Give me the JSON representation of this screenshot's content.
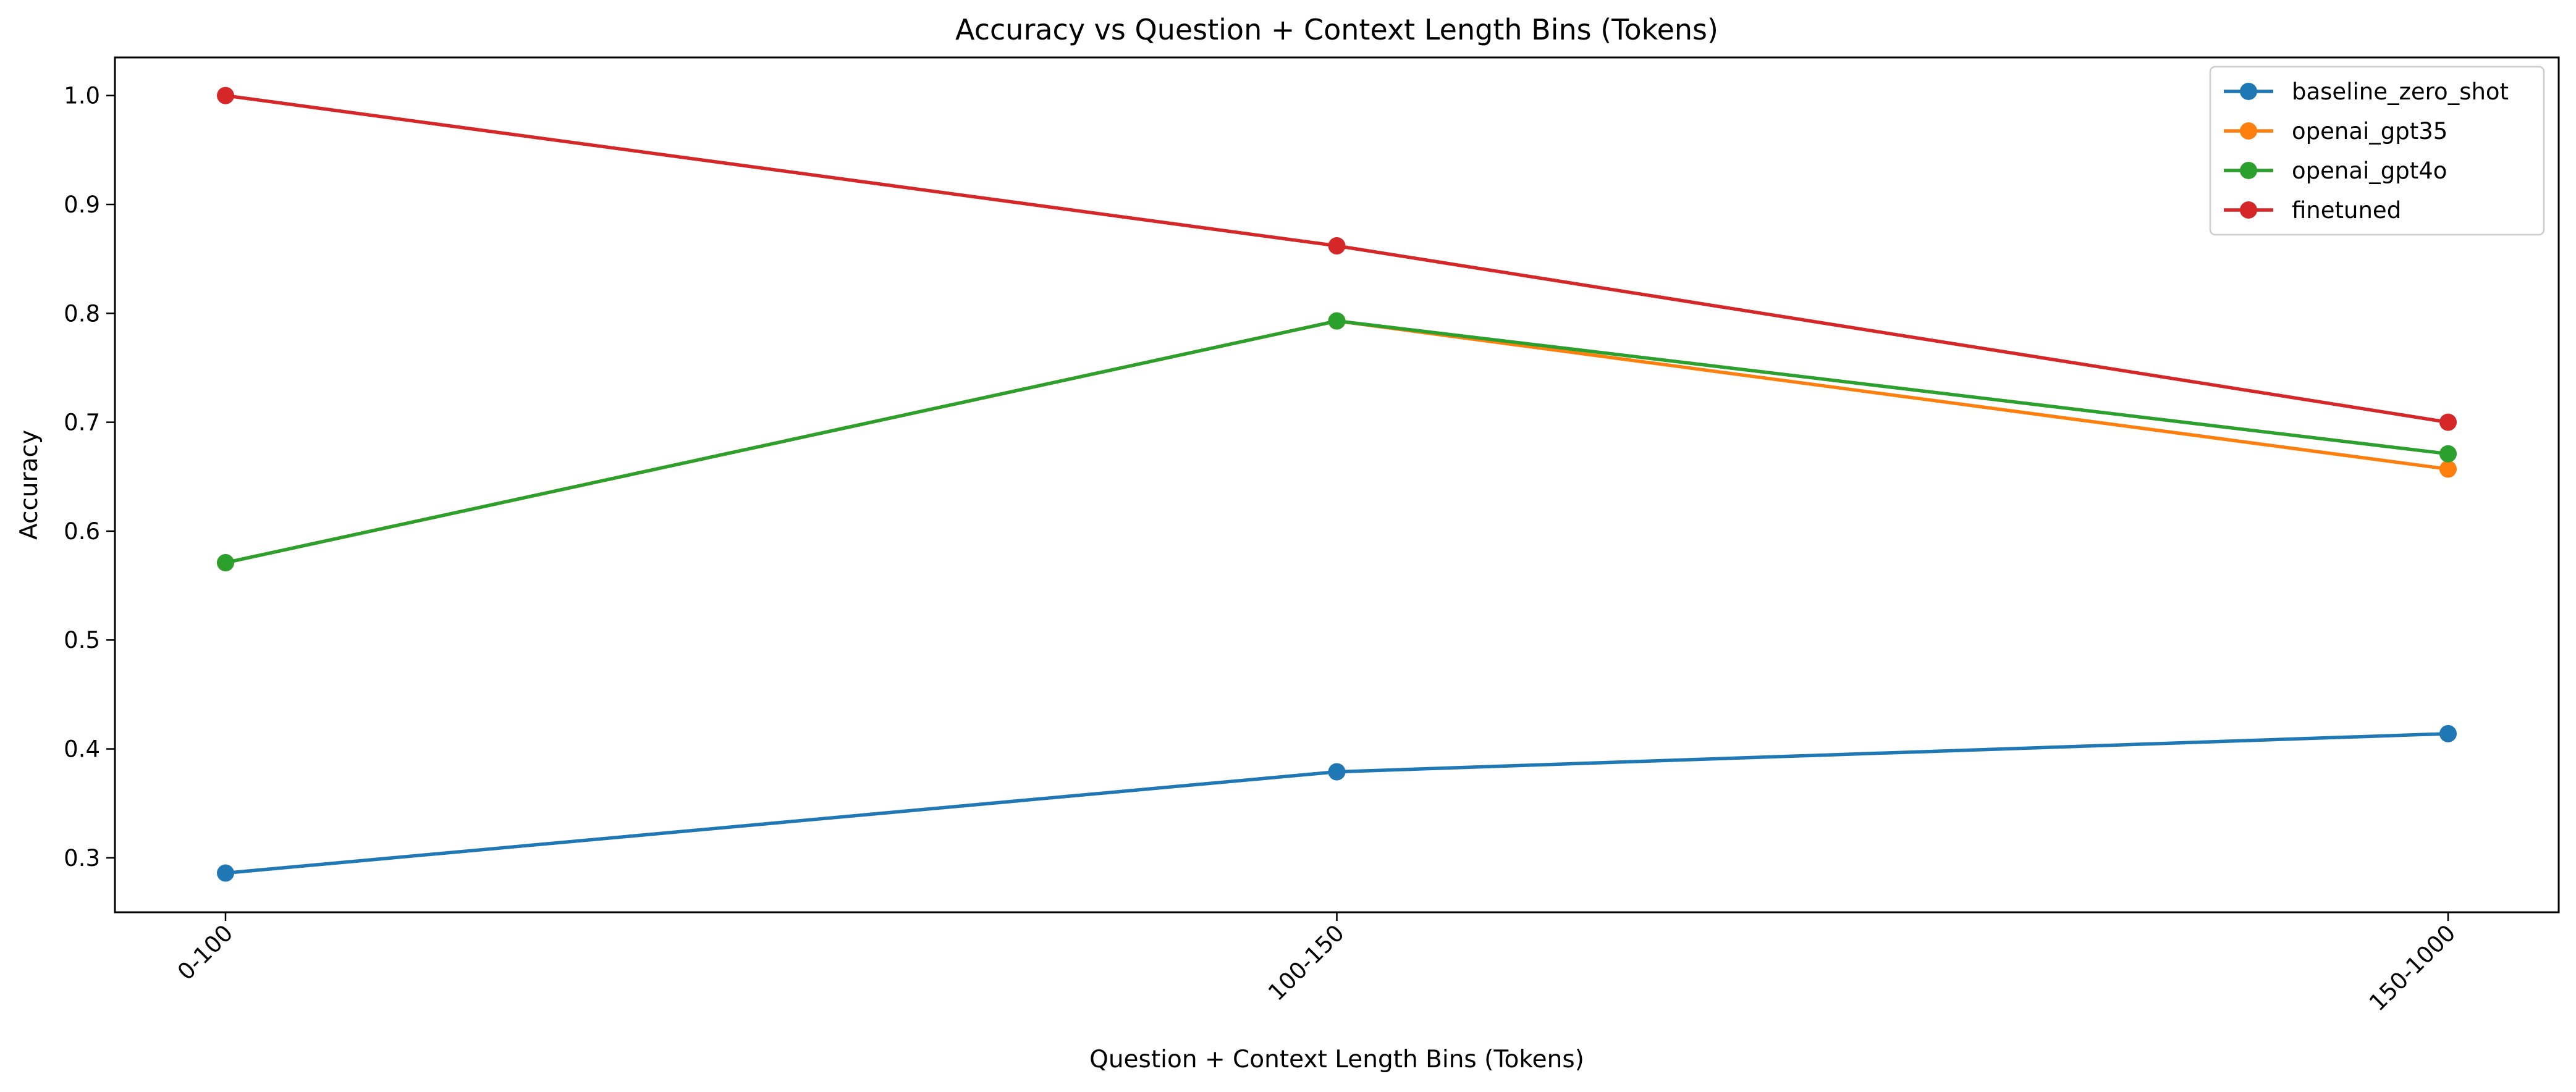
{
  "chart_data": {
    "type": "line",
    "title": "Accuracy vs Question + Context Length Bins (Tokens)",
    "xlabel": "Question + Context Length Bins (Tokens)",
    "ylabel": "Accuracy",
    "categories": [
      "0-100",
      "100-150",
      "150-1000"
    ],
    "ylim": [
      0.25,
      1.035
    ],
    "yticks": [
      "0.3",
      "0.4",
      "0.5",
      "0.6",
      "0.7",
      "0.8",
      "0.9",
      "1.0"
    ],
    "xtick_rotation": 45,
    "grid": false,
    "legend_position": "top-right",
    "series": [
      {
        "name": "baseline_zero_shot",
        "color": "#1f77b4",
        "values": [
          0.286,
          0.379,
          0.414
        ]
      },
      {
        "name": "openai_gpt35",
        "color": "#ff7f0e",
        "values": [
          0.571,
          0.793,
          0.657
        ]
      },
      {
        "name": "openai_gpt4o",
        "color": "#2ca02c",
        "values": [
          0.571,
          0.793,
          0.671
        ]
      },
      {
        "name": "finetuned",
        "color": "#d62728",
        "values": [
          1.0,
          0.862,
          0.7
        ]
      }
    ]
  }
}
